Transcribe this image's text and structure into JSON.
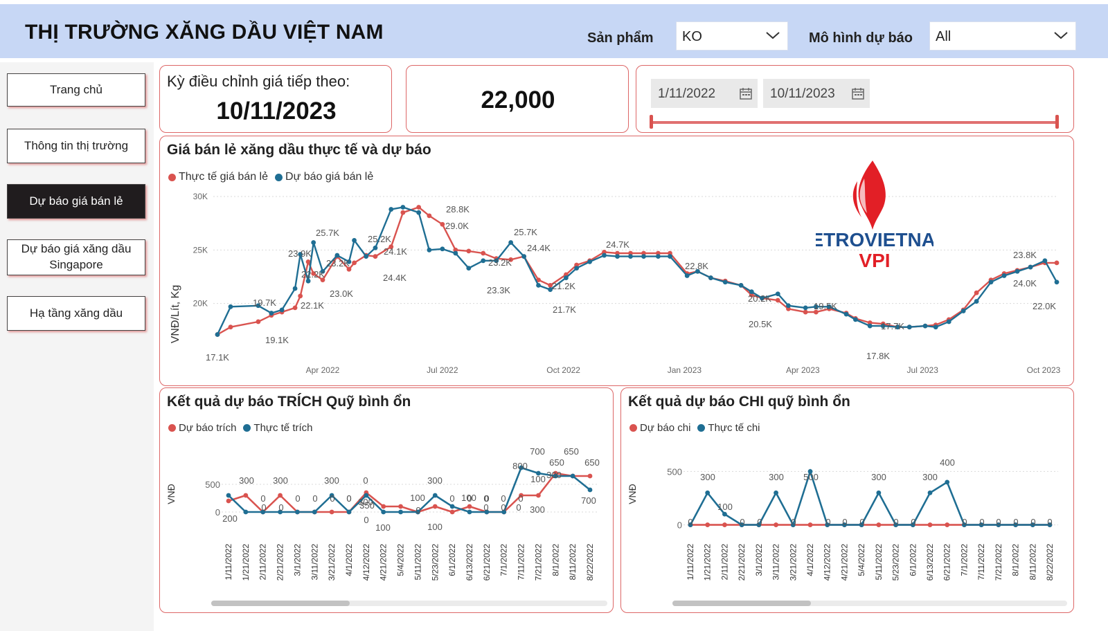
{
  "header": {
    "title": "THỊ TRƯỜNG XĂNG DẦU VIỆT NAM",
    "product_label": "Sản phẩm",
    "product_value": "KO",
    "model_label": "Mô hình dự báo",
    "model_value": "All"
  },
  "nav": [
    {
      "label": "Trang chủ"
    },
    {
      "label": "Thông tin thị trường"
    },
    {
      "label": "Dự báo giá bán lẻ",
      "active": true
    },
    {
      "label": "Dự báo giá xăng dầu Singapore"
    },
    {
      "label": "Hạ tầng xăng dầu"
    }
  ],
  "next_adjust": {
    "label": "Kỳ điều chỉnh giá tiếp theo:",
    "date": "10/11/2023"
  },
  "kpi": {
    "value": "22,000"
  },
  "date_filter": {
    "start": "1/11/2022",
    "end": "10/11/2023"
  },
  "colors": {
    "actual": "#d9534f",
    "forecast": "#1f6e93",
    "border": "#dd6666"
  },
  "logo": {
    "name": "PETROVIETNAM",
    "sub": "VPI"
  },
  "main_chart": {
    "title": "Giá bán lẻ xăng dầu thực tế và dự báo",
    "legend_actual": "Thực tế giá bán lẻ",
    "legend_forecast": "Dự báo giá bán lẻ",
    "ylabel": "VNĐ/Lít, Kg"
  },
  "trich_chart": {
    "title": "Kết quả dự báo TRÍCH Quỹ bình ổn",
    "legend_forecast": "Dự báo trích",
    "legend_actual": "Thực tế trích",
    "ylabel": "VNĐ"
  },
  "chi_chart": {
    "title": "Kết quả dự báo CHI quỹ bình ổn",
    "legend_forecast": "Dự báo chi",
    "legend_actual": "Thực tế chi",
    "ylabel": "VNĐ"
  },
  "chart_data": [
    {
      "type": "line",
      "title": "Giá bán lẻ xăng dầu thực tế và dự báo",
      "ylabel": "VNĐ/Lít, Kg",
      "ylim": [
        15000,
        30000
      ],
      "yticks": [
        "20K",
        "25K",
        "30K"
      ],
      "ytick_values": [
        20000,
        25000,
        30000
      ],
      "xticks": [
        "Apr 2022",
        "Jul 2022",
        "Oct 2022",
        "Jan 2023",
        "Apr 2023",
        "Jul 2023",
        "Oct 2023"
      ],
      "xtick_dates": [
        "2022-04-01",
        "2022-07-01",
        "2022-10-01",
        "2023-01-01",
        "2023-04-01",
        "2023-07-01",
        "2023-10-01"
      ],
      "x": [
        "2022-01-11",
        "2022-01-21",
        "2022-02-11",
        "2022-02-21",
        "2022-03-01",
        "2022-03-11",
        "2022-03-15",
        "2022-03-21",
        "2022-03-25",
        "2022-04-01",
        "2022-04-12",
        "2022-04-21",
        "2022-04-25",
        "2022-05-04",
        "2022-05-11",
        "2022-05-23",
        "2022-06-01",
        "2022-06-13",
        "2022-06-21",
        "2022-07-01",
        "2022-07-11",
        "2022-07-21",
        "2022-08-01",
        "2022-08-11",
        "2022-08-22",
        "2022-09-01",
        "2022-09-12",
        "2022-09-21",
        "2022-10-03",
        "2022-10-11",
        "2022-10-21",
        "2022-11-01",
        "2022-11-11",
        "2022-11-21",
        "2022-12-01",
        "2022-12-12",
        "2022-12-21",
        "2023-01-03",
        "2023-01-11",
        "2023-01-21",
        "2023-02-01",
        "2023-02-13",
        "2023-02-21",
        "2023-03-01",
        "2023-03-13",
        "2023-03-21",
        "2023-04-03",
        "2023-04-11",
        "2023-04-21",
        "2023-05-04",
        "2023-05-11",
        "2023-05-22",
        "2023-06-01",
        "2023-06-12",
        "2023-06-21",
        "2023-07-03",
        "2023-07-11",
        "2023-07-21",
        "2023-08-01",
        "2023-08-11",
        "2023-08-22",
        "2023-09-01",
        "2023-09-11",
        "2023-09-21",
        "2023-10-02",
        "2023-10-11"
      ],
      "series": [
        {
          "name": "Thực tế giá bán lẻ",
          "color": "#d9534f",
          "values": [
            17100,
            17800,
            18300,
            18900,
            19200,
            19600,
            20700,
            23900,
            22800,
            22200,
            24400,
            23200,
            23800,
            24500,
            24400,
            25300,
            28500,
            29000,
            28200,
            27400,
            25000,
            24900,
            24700,
            24200,
            24100,
            24400,
            22200,
            21700,
            22700,
            23600,
            24000,
            24800,
            24700,
            24700,
            24700,
            24700,
            24700,
            22800,
            23000,
            22400,
            22100,
            21700,
            20800,
            20500,
            20300,
            19500,
            19200,
            19200,
            19500,
            19100,
            18600,
            18200,
            18100,
            17800,
            17800,
            17900,
            18000,
            18500,
            19400,
            21000,
            22200,
            22800,
            23100,
            23400,
            23800,
            23800
          ]
        },
        {
          "name": "Dự báo giá bán lẻ",
          "color": "#1f6e93",
          "values": [
            17100,
            19700,
            19800,
            19100,
            19400,
            21400,
            24600,
            22100,
            25700,
            23000,
            24500,
            23900,
            25900,
            24400,
            25200,
            28800,
            29000,
            28500,
            25000,
            25100,
            24700,
            23300,
            24000,
            24000,
            25700,
            24400,
            21700,
            21300,
            22400,
            23300,
            23900,
            24500,
            24400,
            24400,
            24400,
            24400,
            24400,
            22600,
            23000,
            22400,
            22000,
            21700,
            21100,
            20500,
            20900,
            19800,
            19600,
            19700,
            19700,
            19000,
            18500,
            17900,
            17900,
            17800,
            17800,
            17900,
            17800,
            18300,
            19300,
            20200,
            22000,
            22600,
            23000,
            23400,
            24000,
            22000
          ]
        }
      ],
      "data_labels": [
        "17.1K",
        "19.7K",
        "19.1K",
        "23.9K",
        "22.1K",
        "25.7K",
        "22.2K",
        "23.2K",
        "23.0K",
        "25.2K",
        "24.1K",
        "24.4K",
        "28.8K",
        "29.0K",
        "23.2K",
        "23.3K",
        "25.7K",
        "24.4K",
        "21.2K",
        "21.7K",
        "24.7K",
        "22.8K",
        "20.2K",
        "20.5K",
        "19.5K",
        "17.7K",
        "17.8K",
        "23.8K",
        "24.0K",
        "22.0K"
      ]
    },
    {
      "type": "line",
      "title": "Kết quả dự báo TRÍCH Quỹ bình ổn",
      "ylabel": "VNĐ",
      "ylim": [
        -150,
        900
      ],
      "yticks": [
        "0",
        "500"
      ],
      "ytick_values": [
        0,
        500
      ],
      "categories": [
        "1/11/2022",
        "1/21/2022",
        "2/11/2022",
        "2/21/2022",
        "3/1/2022",
        "3/11/2022",
        "3/21/2022",
        "4/1/2022",
        "4/12/2022",
        "4/21/2022",
        "5/4/2022",
        "5/11/2022",
        "5/23/2022",
        "6/1/2022",
        "6/13/2022",
        "6/21/2022",
        "7/1/2022",
        "7/11/2022",
        "7/21/2022",
        "8/1/2022",
        "8/11/2022",
        "8/22/2022"
      ],
      "series": [
        {
          "name": "Dự báo trích",
          "color": "#d9534f",
          "values": [
            200,
            300,
            0,
            300,
            0,
            0,
            0,
            0,
            350,
            100,
            100,
            0,
            100,
            0,
            100,
            0,
            0,
            300,
            300,
            700,
            650,
            650
          ]
        },
        {
          "name": "Thực tế trích",
          "color": "#1f6e93",
          "values": [
            300,
            0,
            0,
            0,
            0,
            0,
            300,
            0,
            300,
            0,
            0,
            0,
            300,
            100,
            0,
            0,
            0,
            800,
            700,
            650,
            650,
            400
          ]
        }
      ],
      "data_labels": [
        "300",
        "0",
        "300",
        "0",
        "0",
        "0",
        "0",
        "300",
        "0",
        "0",
        "300",
        "0",
        "0",
        "0",
        "0",
        "300",
        "100",
        "0",
        "0",
        "100",
        "0",
        "0",
        "0",
        "800",
        "700",
        "650",
        "650",
        "650",
        "200",
        "0",
        "0",
        "0",
        "350",
        "100",
        "100",
        "0",
        "100",
        "300",
        "300",
        "700",
        "400"
      ]
    },
    {
      "type": "line",
      "title": "Kết quả dự báo CHI quỹ bình ổn",
      "ylabel": "VNĐ",
      "ylim": [
        -100,
        600
      ],
      "yticks": [
        "0",
        "500"
      ],
      "ytick_values": [
        0,
        500
      ],
      "categories": [
        "1/11/2022",
        "1/21/2022",
        "2/11/2022",
        "2/21/2022",
        "3/1/2022",
        "3/11/2022",
        "3/21/2022",
        "4/1/2022",
        "4/12/2022",
        "4/21/2022",
        "5/4/2022",
        "5/11/2022",
        "5/23/2022",
        "6/1/2022",
        "6/13/2022",
        "6/21/2022",
        "7/1/2022",
        "7/11/2022",
        "7/21/2022",
        "8/1/2022",
        "8/11/2022",
        "8/22/2022"
      ],
      "series": [
        {
          "name": "Dự báo chi",
          "color": "#d9534f",
          "values": [
            0,
            0,
            0,
            0,
            0,
            0,
            0,
            0,
            0,
            0,
            0,
            0,
            0,
            0,
            0,
            0,
            0,
            0,
            0,
            0,
            0,
            0
          ]
        },
        {
          "name": "Thực tế chi",
          "color": "#1f6e93",
          "values": [
            0,
            300,
            100,
            0,
            0,
            300,
            0,
            500,
            0,
            0,
            0,
            300,
            0,
            0,
            300,
            400,
            0,
            0,
            0,
            0,
            0,
            0
          ]
        }
      ],
      "data_labels": [
        "0",
        "300",
        "100",
        "0",
        "0",
        "300",
        "0",
        "500",
        "0",
        "0",
        "0",
        "300",
        "0",
        "0",
        "300",
        "400",
        "0",
        "0",
        "0",
        "0",
        "0",
        "0"
      ]
    }
  ]
}
